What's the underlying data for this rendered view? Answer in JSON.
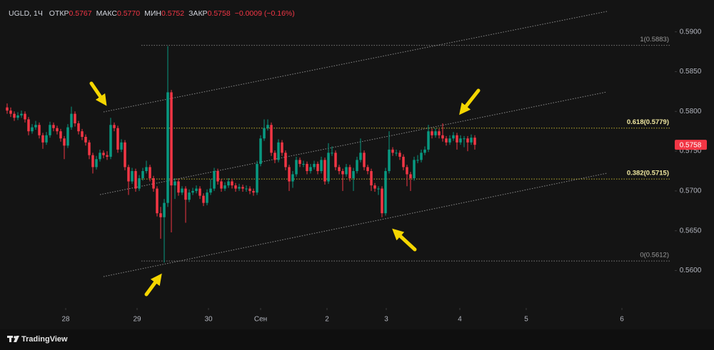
{
  "chart_data": {
    "type": "candlestick",
    "header": {
      "symbol": "UGLD, 1Ч",
      "fields": [
        {
          "name": "ОТКР",
          "value": "0.5767"
        },
        {
          "name": "МАКС",
          "value": "0.5770"
        },
        {
          "name": "МИН",
          "value": "0.5752"
        },
        {
          "name": "ЗАКР",
          "value": "0.5758"
        }
      ],
      "change": "−0.0009 (−0.16%)"
    },
    "up_color": "#089981",
    "down_color": "#f23645",
    "candles": [
      [
        0.5805,
        0.581,
        0.5797,
        0.5801
      ],
      [
        0.5801,
        0.5805,
        0.5793,
        0.5797
      ],
      [
        0.5797,
        0.58,
        0.5788,
        0.5792
      ],
      [
        0.5792,
        0.5799,
        0.5789,
        0.5795
      ],
      [
        0.5795,
        0.5801,
        0.5792,
        0.5797
      ],
      [
        0.5797,
        0.58,
        0.5786,
        0.579
      ],
      [
        0.579,
        0.5793,
        0.577,
        0.5775
      ],
      [
        0.5775,
        0.5784,
        0.5772,
        0.578
      ],
      [
        0.578,
        0.5788,
        0.5777,
        0.5783
      ],
      [
        0.5783,
        0.5786,
        0.5766,
        0.577
      ],
      [
        0.577,
        0.5773,
        0.5753,
        0.5761
      ],
      [
        0.5761,
        0.5774,
        0.5758,
        0.577
      ],
      [
        0.577,
        0.5787,
        0.5767,
        0.5783
      ],
      [
        0.5783,
        0.5786,
        0.5775,
        0.5779
      ],
      [
        0.5779,
        0.5782,
        0.5771,
        0.5775
      ],
      [
        0.5775,
        0.5778,
        0.5762,
        0.5766
      ],
      [
        0.5766,
        0.5769,
        0.574,
        0.5757
      ],
      [
        0.5757,
        0.5784,
        0.5754,
        0.578
      ],
      [
        0.578,
        0.5806,
        0.5777,
        0.5797
      ],
      [
        0.5797,
        0.58,
        0.5781,
        0.5785
      ],
      [
        0.5785,
        0.5788,
        0.5771,
        0.5775
      ],
      [
        0.5775,
        0.5778,
        0.5764,
        0.5768
      ],
      [
        0.5768,
        0.5771,
        0.5757,
        0.5761
      ],
      [
        0.5761,
        0.5764,
        0.574,
        0.5745
      ],
      [
        0.5745,
        0.5748,
        0.5722,
        0.573
      ],
      [
        0.573,
        0.5744,
        0.5727,
        0.574
      ],
      [
        0.574,
        0.5752,
        0.5737,
        0.5748
      ],
      [
        0.5748,
        0.5751,
        0.5741,
        0.5745
      ],
      [
        0.5745,
        0.575,
        0.5739,
        0.5743
      ],
      [
        0.5743,
        0.5792,
        0.574,
        0.5783
      ],
      [
        0.5783,
        0.5786,
        0.5775,
        0.5779
      ],
      [
        0.5779,
        0.5782,
        0.5748,
        0.5752
      ],
      [
        0.5752,
        0.5765,
        0.5749,
        0.5761
      ],
      [
        0.5761,
        0.5764,
        0.5726,
        0.573
      ],
      [
        0.573,
        0.5733,
        0.5695,
        0.5712
      ],
      [
        0.5712,
        0.5729,
        0.5709,
        0.5725
      ],
      [
        0.5725,
        0.5728,
        0.5699,
        0.5703
      ],
      [
        0.5703,
        0.572,
        0.57,
        0.5716
      ],
      [
        0.5716,
        0.5729,
        0.5713,
        0.5725
      ],
      [
        0.5725,
        0.5738,
        0.5722,
        0.573
      ],
      [
        0.573,
        0.5733,
        0.5712,
        0.5716
      ],
      [
        0.5716,
        0.5719,
        0.5699,
        0.5703
      ],
      [
        0.5703,
        0.5706,
        0.5668,
        0.5672
      ],
      [
        0.5672,
        0.568,
        0.564,
        0.5667
      ],
      [
        0.5667,
        0.569,
        0.561,
        0.5685
      ],
      [
        0.5685,
        0.5882,
        0.568,
        0.5824
      ],
      [
        0.5824,
        0.5827,
        0.5648,
        0.5707
      ],
      [
        0.5707,
        0.5716,
        0.569,
        0.5712
      ],
      [
        0.5712,
        0.5715,
        0.5694,
        0.5698
      ],
      [
        0.5698,
        0.5706,
        0.5695,
        0.5703
      ],
      [
        0.5703,
        0.5706,
        0.566,
        0.5689
      ],
      [
        0.5689,
        0.5702,
        0.5686,
        0.5698
      ],
      [
        0.5698,
        0.5704,
        0.5695,
        0.57
      ],
      [
        0.57,
        0.5707,
        0.5697,
        0.5703
      ],
      [
        0.5703,
        0.5706,
        0.569,
        0.5694
      ],
      [
        0.5694,
        0.5697,
        0.5681,
        0.5685
      ],
      [
        0.5685,
        0.5702,
        0.5682,
        0.5698
      ],
      [
        0.5698,
        0.5715,
        0.5695,
        0.5703
      ],
      [
        0.5703,
        0.5729,
        0.57,
        0.5725
      ],
      [
        0.5725,
        0.5728,
        0.5708,
        0.5712
      ],
      [
        0.5712,
        0.5715,
        0.5699,
        0.5703
      ],
      [
        0.5703,
        0.5711,
        0.57,
        0.5707
      ],
      [
        0.5707,
        0.5716,
        0.5704,
        0.5712
      ],
      [
        0.5712,
        0.5715,
        0.5703,
        0.5707
      ],
      [
        0.5707,
        0.571,
        0.5699,
        0.5703
      ],
      [
        0.5703,
        0.5709,
        0.57,
        0.5705
      ],
      [
        0.5705,
        0.5708,
        0.5699,
        0.5703
      ],
      [
        0.5703,
        0.5707,
        0.5699,
        0.5703
      ],
      [
        0.5703,
        0.5706,
        0.5696,
        0.57
      ],
      [
        0.57,
        0.5703,
        0.5694,
        0.5698
      ],
      [
        0.5698,
        0.5738,
        0.5695,
        0.5734
      ],
      [
        0.5734,
        0.577,
        0.5731,
        0.5766
      ],
      [
        0.5766,
        0.579,
        0.5763,
        0.5779
      ],
      [
        0.5779,
        0.579,
        0.5776,
        0.5783
      ],
      [
        0.5783,
        0.5786,
        0.5744,
        0.5748
      ],
      [
        0.5748,
        0.5751,
        0.5735,
        0.5739
      ],
      [
        0.5739,
        0.5765,
        0.5736,
        0.5761
      ],
      [
        0.5761,
        0.5764,
        0.5744,
        0.5748
      ],
      [
        0.5748,
        0.5751,
        0.5726,
        0.573
      ],
      [
        0.573,
        0.5733,
        0.57,
        0.5712
      ],
      [
        0.5712,
        0.5725,
        0.5704,
        0.5721
      ],
      [
        0.5721,
        0.5743,
        0.5718,
        0.5739
      ],
      [
        0.5739,
        0.5742,
        0.573,
        0.5734
      ],
      [
        0.5734,
        0.5738,
        0.573,
        0.5734
      ],
      [
        0.5734,
        0.5737,
        0.5721,
        0.5725
      ],
      [
        0.5725,
        0.5734,
        0.5722,
        0.573
      ],
      [
        0.573,
        0.5738,
        0.5727,
        0.5734
      ],
      [
        0.5734,
        0.5737,
        0.5721,
        0.5725
      ],
      [
        0.5725,
        0.5743,
        0.5722,
        0.5739
      ],
      [
        0.5739,
        0.5742,
        0.5708,
        0.5712
      ],
      [
        0.5712,
        0.576,
        0.5709,
        0.5748
      ],
      [
        0.5748,
        0.5756,
        0.5744,
        0.5748
      ],
      [
        0.5748,
        0.5751,
        0.5726,
        0.573
      ],
      [
        0.573,
        0.5733,
        0.5721,
        0.5725
      ],
      [
        0.5725,
        0.5728,
        0.57,
        0.5721
      ],
      [
        0.5721,
        0.5734,
        0.5718,
        0.573
      ],
      [
        0.573,
        0.5733,
        0.5712,
        0.5716
      ],
      [
        0.5716,
        0.5729,
        0.57,
        0.5725
      ],
      [
        0.5725,
        0.5743,
        0.5722,
        0.5739
      ],
      [
        0.5739,
        0.5766,
        0.5736,
        0.5748
      ],
      [
        0.5748,
        0.5751,
        0.5726,
        0.573
      ],
      [
        0.573,
        0.5733,
        0.5721,
        0.5725
      ],
      [
        0.5725,
        0.5728,
        0.57,
        0.5707
      ],
      [
        0.5707,
        0.571,
        0.5699,
        0.5703
      ],
      [
        0.5703,
        0.5706,
        0.5695,
        0.5703
      ],
      [
        0.5703,
        0.5706,
        0.5667,
        0.5672
      ],
      [
        0.5672,
        0.5729,
        0.5669,
        0.5725
      ],
      [
        0.5725,
        0.5775,
        0.5722,
        0.5752
      ],
      [
        0.5752,
        0.5755,
        0.5744,
        0.5748
      ],
      [
        0.5748,
        0.5752,
        0.5744,
        0.5748
      ],
      [
        0.5748,
        0.5751,
        0.5739,
        0.5743
      ],
      [
        0.5743,
        0.5746,
        0.5726,
        0.573
      ],
      [
        0.573,
        0.5733,
        0.5706,
        0.5721
      ],
      [
        0.5721,
        0.5724,
        0.57,
        0.5716
      ],
      [
        0.5716,
        0.5743,
        0.5713,
        0.5739
      ],
      [
        0.5739,
        0.5745,
        0.5735,
        0.5739
      ],
      [
        0.5739,
        0.5752,
        0.5736,
        0.5748
      ],
      [
        0.5748,
        0.5756,
        0.5745,
        0.5752
      ],
      [
        0.5752,
        0.5783,
        0.5749,
        0.5775
      ],
      [
        0.5775,
        0.5778,
        0.5766,
        0.577
      ],
      [
        0.577,
        0.5779,
        0.5767,
        0.5775
      ],
      [
        0.5775,
        0.5778,
        0.5766,
        0.577
      ],
      [
        0.577,
        0.5785,
        0.5762,
        0.5766
      ],
      [
        0.5766,
        0.5769,
        0.5757,
        0.5761
      ],
      [
        0.5761,
        0.577,
        0.5758,
        0.5766
      ],
      [
        0.5766,
        0.5774,
        0.5763,
        0.577
      ],
      [
        0.577,
        0.5773,
        0.5752,
        0.5761
      ],
      [
        0.5761,
        0.577,
        0.5758,
        0.5766
      ],
      [
        0.5766,
        0.5769,
        0.5755,
        0.5766
      ],
      [
        0.5766,
        0.5769,
        0.575,
        0.5761
      ],
      [
        0.5761,
        0.5771,
        0.5758,
        0.5767
      ],
      [
        0.5767,
        0.577,
        0.5752,
        0.5758
      ]
    ],
    "xlim": [
      -2,
      187
    ],
    "xticks": [
      {
        "value": 16.4,
        "label": "28"
      },
      {
        "value": 36.4,
        "label": "29"
      },
      {
        "value": 56.4,
        "label": "30"
      },
      {
        "value": 71,
        "label": "Сен"
      },
      {
        "value": 89.6,
        "label": "2"
      },
      {
        "value": 106.2,
        "label": "3"
      },
      {
        "value": 126.8,
        "label": "4"
      },
      {
        "value": 145.4,
        "label": "5"
      },
      {
        "value": 172.2,
        "label": "6"
      }
    ],
    "ylim": [
      0.5553,
      0.594
    ],
    "yticks": [
      {
        "value": 0.56,
        "label": "0.5600"
      },
      {
        "value": 0.565,
        "label": "0.5650"
      },
      {
        "value": 0.57,
        "label": "0.5700"
      },
      {
        "value": 0.575,
        "label": "0.5750"
      },
      {
        "value": 0.58,
        "label": "0.5800"
      },
      {
        "value": 0.585,
        "label": "0.5850"
      },
      {
        "value": 0.59,
        "label": "0.5900"
      }
    ],
    "fib_levels": [
      {
        "value": 0.5883,
        "label": "1(0.5883)"
      },
      {
        "value": 0.5779,
        "label": "0.618(0.5779)"
      },
      {
        "value": 0.5715,
        "label": "0.382(0.5715)"
      },
      {
        "value": 0.5612,
        "label": "0(0.5612)"
      }
    ],
    "price_tag": {
      "value": 0.5758,
      "label": "0.5758"
    },
    "brand": "TradingView"
  }
}
